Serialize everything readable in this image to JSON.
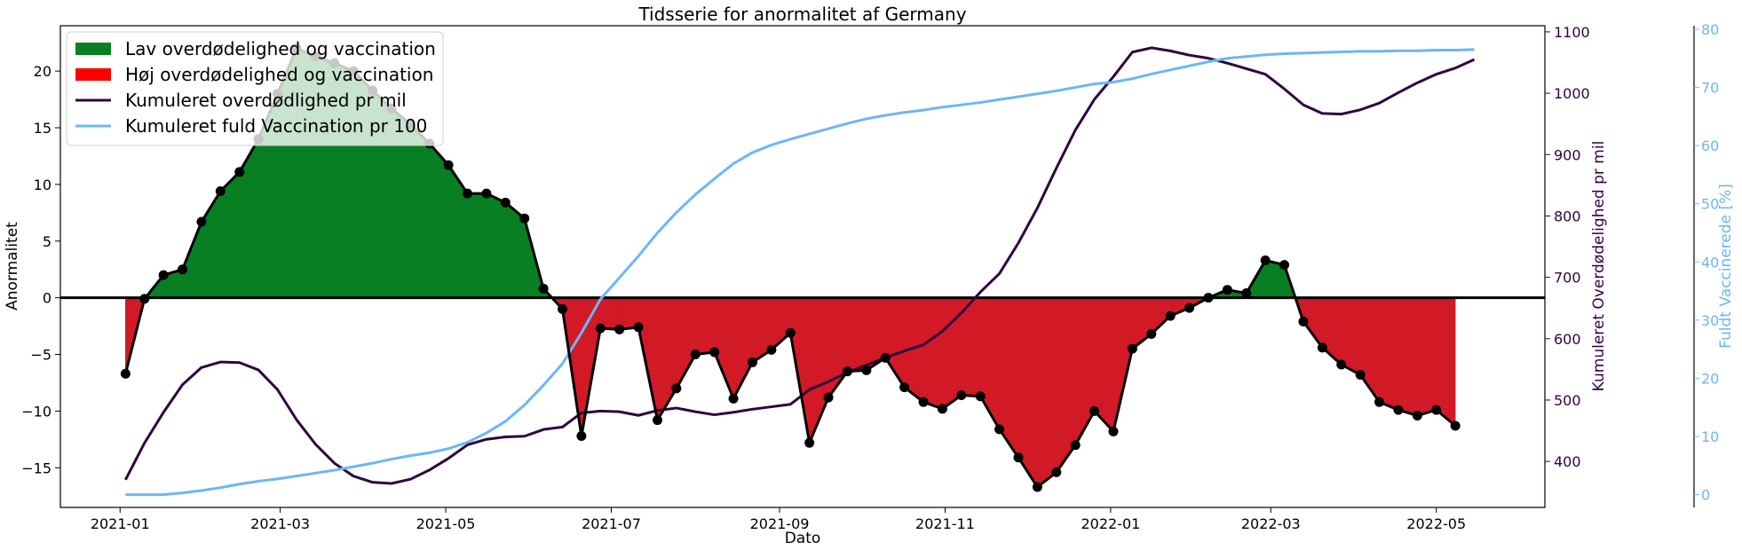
{
  "chart_data": {
    "type": "line",
    "title": "Tidsserie for anormalitet af Germany",
    "xlabel": "Dato",
    "ylabel": "Anormalitet",
    "ylabel_right1": "Kumuleret Overdødelighed pr mil",
    "ylabel_right2": "Fuldt Vaccinerede [%]",
    "xlim": [
      "2020-12-10",
      "2022-06-10"
    ],
    "ylim": [
      -18.5,
      24
    ],
    "ylim_right1": [
      325,
      1110
    ],
    "ylim_right2": [
      -2.2,
      80.6
    ],
    "x_ticks": [
      "2021-01",
      "2021-03",
      "2021-05",
      "2021-07",
      "2021-09",
      "2021-11",
      "2022-01",
      "2022-03",
      "2022-05"
    ],
    "y_ticks": [
      -15,
      -10,
      -5,
      0,
      5,
      10,
      15,
      20
    ],
    "y_ticks_right1": [
      400,
      500,
      600,
      700,
      800,
      900,
      1000,
      1100
    ],
    "y_ticks_right2": [
      0,
      10,
      20,
      30,
      40,
      50,
      60,
      70,
      80
    ],
    "legend_position": "upper left",
    "colors": {
      "positive_fill": "#077f22",
      "negative_fill": "#d11a26",
      "anomaly_line": "#000000",
      "mortality_line": "#300340",
      "vaccination_line": "#6cb6f7",
      "zero_line": "#000000"
    },
    "legend": [
      {
        "label": "Lav overdødelighed og vaccination",
        "kind": "patch",
        "color": "#077f22"
      },
      {
        "label": "Høj overdødelighed og vaccination",
        "kind": "patch",
        "color": "#ff0000"
      },
      {
        "label": "Kumuleret overdødlighed pr mil",
        "kind": "line",
        "color": "#300340"
      },
      {
        "label": "Kumuleret fuld Vaccination pr 100",
        "kind": "line",
        "color": "#6cb6f7"
      }
    ],
    "series": [
      {
        "name": "Anormalitet",
        "axis": "left",
        "points": [
          [
            "2021-01-03",
            -6.7
          ],
          [
            "2021-01-10",
            -0.1
          ],
          [
            "2021-01-17",
            2.0
          ],
          [
            "2021-01-24",
            2.5
          ],
          [
            "2021-01-31",
            6.7
          ],
          [
            "2021-02-07",
            9.4
          ],
          [
            "2021-02-14",
            11.1
          ],
          [
            "2021-02-21",
            14.0
          ],
          [
            "2021-02-28",
            18.0
          ],
          [
            "2021-03-07",
            22.0
          ],
          [
            "2021-03-14",
            21.3
          ],
          [
            "2021-03-21",
            20.7
          ],
          [
            "2021-03-28",
            20.0
          ],
          [
            "2021-04-04",
            18.3
          ],
          [
            "2021-04-11",
            16.7
          ],
          [
            "2021-04-18",
            15.3
          ],
          [
            "2021-04-25",
            13.6
          ],
          [
            "2021-05-02",
            11.7
          ],
          [
            "2021-05-09",
            9.2
          ],
          [
            "2021-05-16",
            9.2
          ],
          [
            "2021-05-23",
            8.4
          ],
          [
            "2021-05-30",
            7.0
          ],
          [
            "2021-06-06",
            0.8
          ],
          [
            "2021-06-13",
            -1.0
          ],
          [
            "2021-06-20",
            -12.2
          ],
          [
            "2021-06-27",
            -2.7
          ],
          [
            "2021-07-04",
            -2.8
          ],
          [
            "2021-07-11",
            -2.6
          ],
          [
            "2021-07-18",
            -10.8
          ],
          [
            "2021-07-25",
            -8.0
          ],
          [
            "2021-08-01",
            -5.0
          ],
          [
            "2021-08-08",
            -4.8
          ],
          [
            "2021-08-15",
            -8.9
          ],
          [
            "2021-08-22",
            -5.7
          ],
          [
            "2021-08-29",
            -4.6
          ],
          [
            "2021-09-05",
            -3.1
          ],
          [
            "2021-09-12",
            -12.8
          ],
          [
            "2021-09-19",
            -8.8
          ],
          [
            "2021-09-26",
            -6.5
          ],
          [
            "2021-10-03",
            -6.4
          ],
          [
            "2021-10-10",
            -5.3
          ],
          [
            "2021-10-17",
            -7.9
          ],
          [
            "2021-10-24",
            -9.2
          ],
          [
            "2021-10-31",
            -9.8
          ],
          [
            "2021-11-07",
            -8.6
          ],
          [
            "2021-11-14",
            -8.7
          ],
          [
            "2021-11-21",
            -11.6
          ],
          [
            "2021-11-28",
            -14.1
          ],
          [
            "2021-12-05",
            -16.7
          ],
          [
            "2021-12-12",
            -15.4
          ],
          [
            "2021-12-19",
            -13.0
          ],
          [
            "2021-12-26",
            -10.0
          ],
          [
            "2022-01-02",
            -11.8
          ],
          [
            "2022-01-09",
            -4.5
          ],
          [
            "2022-01-16",
            -3.2
          ],
          [
            "2022-01-23",
            -1.6
          ],
          [
            "2022-01-30",
            -0.9
          ],
          [
            "2022-02-06",
            0.0
          ],
          [
            "2022-02-13",
            0.7
          ],
          [
            "2022-02-20",
            0.4
          ],
          [
            "2022-02-27",
            3.3
          ],
          [
            "2022-03-06",
            2.9
          ],
          [
            "2022-03-13",
            -2.1
          ],
          [
            "2022-03-20",
            -4.4
          ],
          [
            "2022-03-27",
            -5.9
          ],
          [
            "2022-04-03",
            -6.8
          ],
          [
            "2022-04-10",
            -9.2
          ],
          [
            "2022-04-17",
            -9.9
          ],
          [
            "2022-04-24",
            -10.4
          ],
          [
            "2022-05-01",
            -9.9
          ],
          [
            "2022-05-08",
            -11.3
          ]
        ]
      },
      {
        "name": "Kumuleret overdødlighed pr mil",
        "axis": "right1",
        "points": [
          [
            "2021-01-03",
            370
          ],
          [
            "2021-01-10",
            430
          ],
          [
            "2021-01-17",
            480
          ],
          [
            "2021-01-24",
            525
          ],
          [
            "2021-01-31",
            553
          ],
          [
            "2021-02-07",
            562
          ],
          [
            "2021-02-14",
            561
          ],
          [
            "2021-02-21",
            549
          ],
          [
            "2021-02-28",
            517
          ],
          [
            "2021-03-07",
            468
          ],
          [
            "2021-03-14",
            428
          ],
          [
            "2021-03-21",
            397
          ],
          [
            "2021-03-28",
            376
          ],
          [
            "2021-04-04",
            366
          ],
          [
            "2021-04-11",
            364
          ],
          [
            "2021-04-18",
            371
          ],
          [
            "2021-04-25",
            386
          ],
          [
            "2021-05-02",
            405
          ],
          [
            "2021-05-09",
            427
          ],
          [
            "2021-05-16",
            436
          ],
          [
            "2021-05-23",
            440
          ],
          [
            "2021-05-30",
            441
          ],
          [
            "2021-06-06",
            452
          ],
          [
            "2021-06-13",
            456
          ],
          [
            "2021-06-20",
            479
          ],
          [
            "2021-06-27",
            482
          ],
          [
            "2021-07-04",
            481
          ],
          [
            "2021-07-11",
            475
          ],
          [
            "2021-07-18",
            483
          ],
          [
            "2021-07-25",
            487
          ],
          [
            "2021-08-01",
            481
          ],
          [
            "2021-08-08",
            476
          ],
          [
            "2021-08-15",
            480
          ],
          [
            "2021-08-22",
            485
          ],
          [
            "2021-08-29",
            489
          ],
          [
            "2021-09-05",
            493
          ],
          [
            "2021-09-12",
            517
          ],
          [
            "2021-09-19",
            530
          ],
          [
            "2021-09-26",
            545
          ],
          [
            "2021-10-03",
            557
          ],
          [
            "2021-10-10",
            569
          ],
          [
            "2021-10-17",
            580
          ],
          [
            "2021-10-24",
            590
          ],
          [
            "2021-10-31",
            612
          ],
          [
            "2021-11-07",
            642
          ],
          [
            "2021-11-14",
            676
          ],
          [
            "2021-11-21",
            706
          ],
          [
            "2021-11-28",
            756
          ],
          [
            "2021-12-05",
            813
          ],
          [
            "2021-12-12",
            878
          ],
          [
            "2021-12-19",
            940
          ],
          [
            "2021-12-26",
            990
          ],
          [
            "2022-01-02",
            1027
          ],
          [
            "2022-01-09",
            1067
          ],
          [
            "2022-01-16",
            1074
          ],
          [
            "2022-01-23",
            1069
          ],
          [
            "2022-01-30",
            1062
          ],
          [
            "2022-02-06",
            1057
          ],
          [
            "2022-02-13",
            1049
          ],
          [
            "2022-02-20",
            1040
          ],
          [
            "2022-02-27",
            1031
          ],
          [
            "2022-03-06",
            1007
          ],
          [
            "2022-03-13",
            981
          ],
          [
            "2022-03-20",
            967
          ],
          [
            "2022-03-27",
            966
          ],
          [
            "2022-04-03",
            973
          ],
          [
            "2022-04-10",
            984
          ],
          [
            "2022-04-17",
            1001
          ],
          [
            "2022-04-24",
            1017
          ],
          [
            "2022-05-01",
            1031
          ],
          [
            "2022-05-08",
            1041
          ],
          [
            "2022-05-15",
            1055
          ]
        ]
      },
      {
        "name": "Kumuleret fuld Vaccination pr 100",
        "axis": "right2",
        "points": [
          [
            "2021-01-03",
            0.0
          ],
          [
            "2021-01-10",
            0.0
          ],
          [
            "2021-01-17",
            0.0
          ],
          [
            "2021-01-24",
            0.3
          ],
          [
            "2021-01-31",
            0.7
          ],
          [
            "2021-02-07",
            1.2
          ],
          [
            "2021-02-14",
            1.8
          ],
          [
            "2021-02-21",
            2.3
          ],
          [
            "2021-02-28",
            2.7
          ],
          [
            "2021-03-07",
            3.2
          ],
          [
            "2021-03-14",
            3.7
          ],
          [
            "2021-03-21",
            4.2
          ],
          [
            "2021-03-28",
            4.8
          ],
          [
            "2021-04-04",
            5.4
          ],
          [
            "2021-04-11",
            6.1
          ],
          [
            "2021-04-18",
            6.7
          ],
          [
            "2021-04-25",
            7.2
          ],
          [
            "2021-05-02",
            7.9
          ],
          [
            "2021-05-09",
            9.0
          ],
          [
            "2021-05-16",
            10.6
          ],
          [
            "2021-05-23",
            12.6
          ],
          [
            "2021-05-30",
            15.4
          ],
          [
            "2021-06-06",
            18.8
          ],
          [
            "2021-06-13",
            22.5
          ],
          [
            "2021-06-20",
            27.8
          ],
          [
            "2021-06-27",
            33.6
          ],
          [
            "2021-07-04",
            37.3
          ],
          [
            "2021-07-11",
            41.0
          ],
          [
            "2021-07-18",
            45.0
          ],
          [
            "2021-07-25",
            48.5
          ],
          [
            "2021-08-01",
            51.6
          ],
          [
            "2021-08-08",
            54.3
          ],
          [
            "2021-08-15",
            56.9
          ],
          [
            "2021-08-22",
            58.8
          ],
          [
            "2021-08-29",
            60.1
          ],
          [
            "2021-09-05",
            61.1
          ],
          [
            "2021-09-12",
            62.0
          ],
          [
            "2021-09-19",
            62.9
          ],
          [
            "2021-09-26",
            63.8
          ],
          [
            "2021-10-03",
            64.6
          ],
          [
            "2021-10-10",
            65.2
          ],
          [
            "2021-10-17",
            65.7
          ],
          [
            "2021-10-24",
            66.1
          ],
          [
            "2021-10-31",
            66.6
          ],
          [
            "2021-11-07",
            67.0
          ],
          [
            "2021-11-14",
            67.4
          ],
          [
            "2021-11-21",
            67.9
          ],
          [
            "2021-11-28",
            68.4
          ],
          [
            "2021-12-05",
            68.9
          ],
          [
            "2021-12-12",
            69.4
          ],
          [
            "2021-12-19",
            70.0
          ],
          [
            "2021-12-26",
            70.6
          ],
          [
            "2022-01-02",
            70.9
          ],
          [
            "2022-01-09",
            71.5
          ],
          [
            "2022-01-16",
            72.3
          ],
          [
            "2022-01-23",
            73.0
          ],
          [
            "2022-01-30",
            73.7
          ],
          [
            "2022-02-06",
            74.4
          ],
          [
            "2022-02-13",
            75.0
          ],
          [
            "2022-02-20",
            75.3
          ],
          [
            "2022-02-27",
            75.6
          ],
          [
            "2022-03-06",
            75.8
          ],
          [
            "2022-03-13",
            75.9
          ],
          [
            "2022-03-20",
            76.0
          ],
          [
            "2022-03-27",
            76.1
          ],
          [
            "2022-04-03",
            76.2
          ],
          [
            "2022-04-10",
            76.2
          ],
          [
            "2022-04-17",
            76.3
          ],
          [
            "2022-04-24",
            76.3
          ],
          [
            "2022-05-01",
            76.4
          ],
          [
            "2022-05-08",
            76.4
          ],
          [
            "2022-05-15",
            76.5
          ]
        ]
      }
    ]
  }
}
